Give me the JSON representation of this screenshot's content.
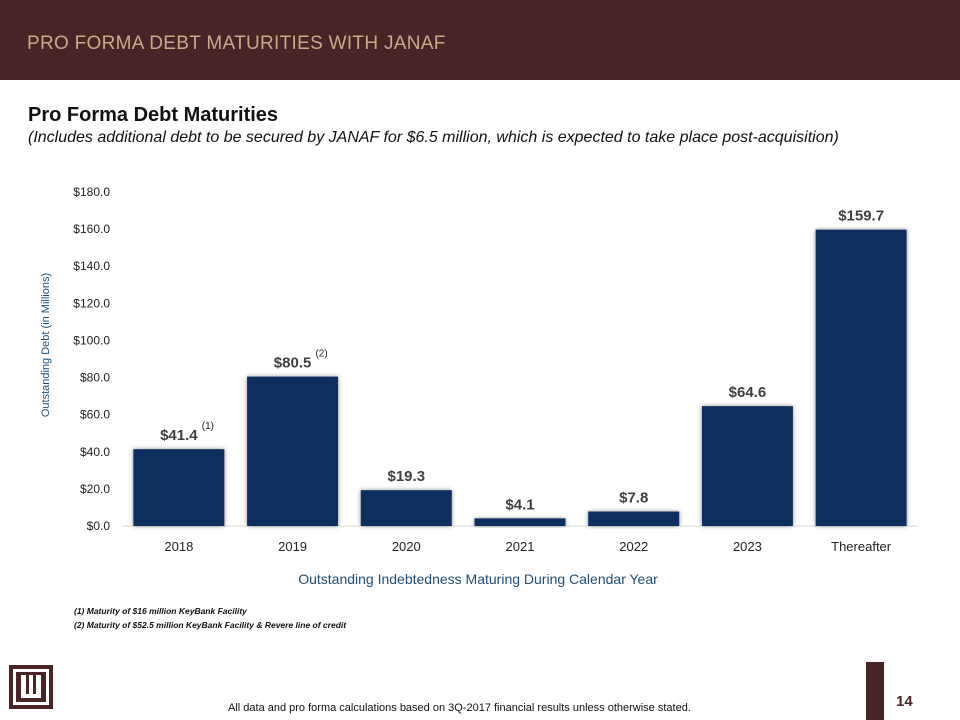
{
  "header": {
    "title": "PRO FORMA DEBT MATURITIES WITH JANAF"
  },
  "section": {
    "title": "Pro Forma Debt Maturities",
    "subtitle": "(Includes additional debt to be secured by JANAF for $6.5 million, which is expected to take place post-acquisition)"
  },
  "chart_data": {
    "type": "bar",
    "categories": [
      "2018",
      "2019",
      "2020",
      "2021",
      "2022",
      "2023",
      "Thereafter"
    ],
    "values": [
      41.4,
      80.5,
      19.3,
      4.1,
      7.8,
      64.6,
      159.7
    ],
    "data_labels": [
      "$41.4",
      "$80.5",
      "$19.3",
      "$4.1",
      "$7.8",
      "$64.6",
      "$159.7"
    ],
    "label_notes": [
      "(1)",
      "(2)",
      "",
      "",
      "",
      "",
      ""
    ],
    "ylim": [
      0,
      180
    ],
    "yticks": [
      "$0.0",
      "$20.0",
      "$40.0",
      "$60.0",
      "$80.0",
      "$100.0",
      "$120.0",
      "$140.0",
      "$160.0",
      "$180.0"
    ],
    "ylabel": "Outstanding Debt (in Millions)",
    "xlabel": "Outstanding Indebtedness Maturing During Calendar Year",
    "bar_color": "#0b2d5e",
    "grid": false
  },
  "footnotes": [
    "(1)  Maturity of $16 million KeyBank Facility",
    "(2)  Maturity of $52.5 million KeyBank Facility & Revere line of credit"
  ],
  "footer": {
    "disclaimer": "All data and pro forma calculations based on 3Q-2017 financial results unless otherwise stated.",
    "page_number": "14"
  },
  "colors": {
    "header_bg": "#4a2326",
    "header_text": "#c9a98a",
    "axis_label": "#1f4e79"
  }
}
